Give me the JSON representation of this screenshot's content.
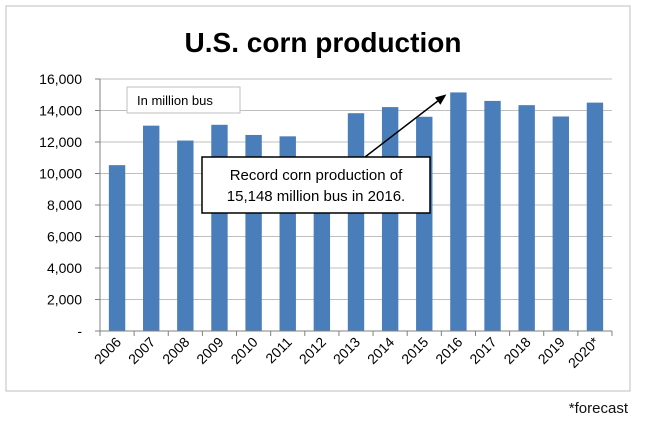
{
  "chart_data": {
    "type": "bar",
    "title": "U.S. corn production",
    "categories": [
      "2006",
      "2007",
      "2008",
      "2009",
      "2010",
      "2011",
      "2012",
      "2013",
      "2014",
      "2015",
      "2016",
      "2017",
      "2018",
      "2019",
      "2020*"
    ],
    "series": [
      {
        "values": [
          10530,
          13038,
          12092,
          13092,
          12447,
          12360,
          10755,
          13829,
          14216,
          13602,
          15148,
          14609,
          14340,
          13620,
          14500
        ]
      }
    ],
    "ylim": [
      0,
      16000
    ],
    "yticks": [
      0,
      2000,
      4000,
      6000,
      8000,
      10000,
      12000,
      14000,
      16000
    ],
    "ytick_labels": [
      "-",
      "2,000",
      "4,000",
      "6,000",
      "8,000",
      "10,000",
      "12,000",
      "14,000",
      "16,000"
    ],
    "grid": true,
    "bar_color": "#4a7ebb",
    "unit_label": "In million bus",
    "annotation": {
      "lines": [
        "Record corn production of",
        "15,148 million bus in 2016."
      ],
      "points_to": "2016"
    }
  },
  "footnote": "*forecast"
}
